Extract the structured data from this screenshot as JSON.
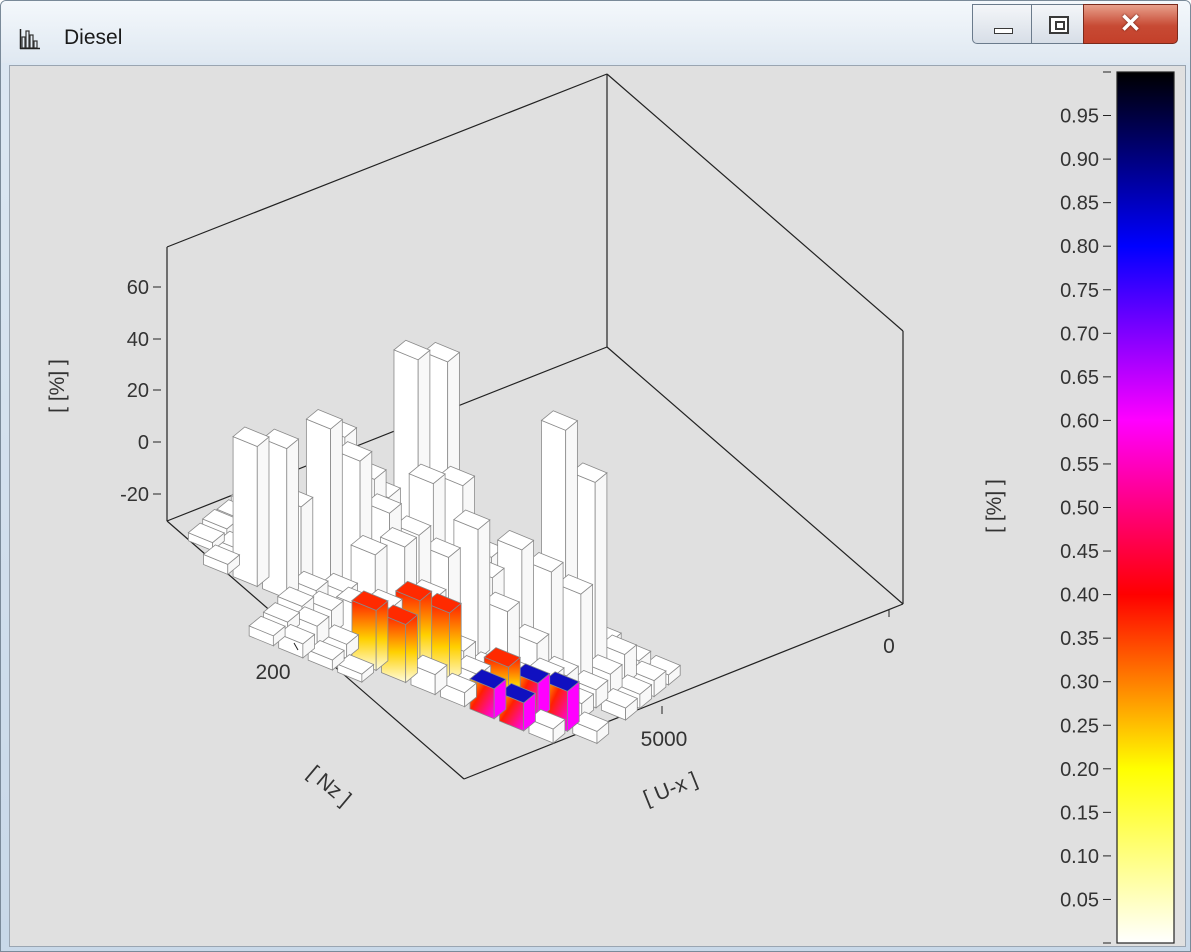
{
  "window": {
    "title": "Diesel",
    "app_icon": "histogram-icon",
    "controls": {
      "minimize_icon": "minimize-icon",
      "maximize_icon": "maximize-icon",
      "close_icon": "close-icon"
    }
  },
  "chart_data": {
    "type": "3d-bar",
    "x_axis": {
      "label": "[ U-x ]",
      "ticks": [
        "0",
        "5000"
      ]
    },
    "y_axis": {
      "label": "[ Nz ]",
      "ticks": [
        "200"
      ]
    },
    "z_axis": {
      "label": "[ [%] ]",
      "ticks": [
        "60",
        "40",
        "20",
        "0",
        "-20"
      ]
    },
    "colorbar": {
      "label": "[ [%] ]",
      "ticks": [
        "0.95",
        "0.90",
        "0.85",
        "0.80",
        "0.75",
        "0.70",
        "0.65",
        "0.60",
        "0.55",
        "0.50",
        "0.45",
        "0.40",
        "0.35",
        "0.30",
        "0.25",
        "0.20",
        "0.15",
        "0.10",
        "0.05"
      ],
      "colormap": [
        "#ffffff",
        "#ffff00",
        "#ff0000",
        "#ff00ff",
        "#0000ff",
        "#000000"
      ]
    }
  }
}
